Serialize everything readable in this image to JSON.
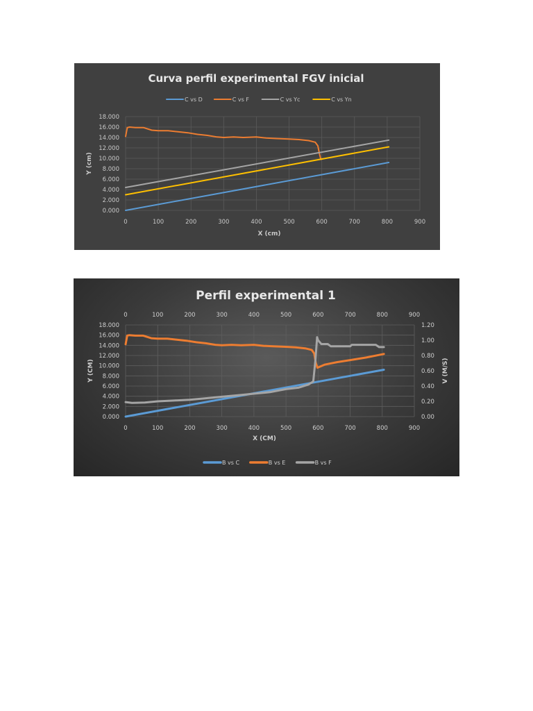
{
  "chart_data": [
    {
      "type": "line",
      "title": "Curva perfil experimental FGV inicial",
      "xlabel": "X (cm)",
      "ylabel": "Y (cm)",
      "xlim": [
        0,
        900
      ],
      "ylim": [
        0,
        18
      ],
      "x_ticks": [
        "0",
        "100",
        "200",
        "300",
        "400",
        "500",
        "600",
        "700",
        "800",
        "900"
      ],
      "y_ticks": [
        "0.000",
        "2.000",
        "4.000",
        "6.000",
        "8.000",
        "10.000",
        "12.000",
        "14.000",
        "16.000",
        "18.000"
      ],
      "grid": true,
      "legend_position": "top",
      "series": [
        {
          "name": "C vs D",
          "color": "#5b9bd5",
          "x": [
            0,
            805
          ],
          "y": [
            0.0,
            9.2
          ]
        },
        {
          "name": "C vs F",
          "color": "#ed7d31",
          "x": [
            0,
            5,
            12,
            30,
            55,
            80,
            100,
            130,
            160,
            190,
            220,
            250,
            280,
            300,
            330,
            360,
            400,
            430,
            460,
            500,
            530,
            560,
            580,
            588,
            593,
            597,
            602
          ],
          "y": [
            14.2,
            15.9,
            16.0,
            15.9,
            15.9,
            15.4,
            15.3,
            15.3,
            15.1,
            14.9,
            14.6,
            14.4,
            14.1,
            14.0,
            14.1,
            14.0,
            14.1,
            13.9,
            13.8,
            13.7,
            13.6,
            13.4,
            13.1,
            12.4,
            10.8,
            9.8,
            9.9
          ]
        },
        {
          "name": "C vs Yc",
          "color": "#a5a5a5",
          "x": [
            0,
            805
          ],
          "y": [
            4.4,
            13.5
          ]
        },
        {
          "name": "C vs Yn",
          "color": "#ffc000",
          "x": [
            0,
            805
          ],
          "y": [
            3.0,
            12.2
          ]
        }
      ]
    },
    {
      "type": "line",
      "title": "Perfil experimental 1",
      "xlabel": "X (CM)",
      "ylabel": "Y (CM)",
      "y2label": "V (M/S)",
      "xlim": [
        0,
        900
      ],
      "ylim": [
        0,
        18
      ],
      "y2lim": [
        0,
        1.2
      ],
      "x_ticks": [
        "0",
        "100",
        "200",
        "300",
        "400",
        "500",
        "600",
        "700",
        "800",
        "900"
      ],
      "y_ticks": [
        "0.000",
        "2.000",
        "4.000",
        "6.000",
        "8.000",
        "10.000",
        "12.000",
        "14.000",
        "16.000",
        "18.000"
      ],
      "y2_ticks": [
        "0.00",
        "0.20",
        "0.40",
        "0.60",
        "0.80",
        "1.00",
        "1.20"
      ],
      "grid": true,
      "legend_position": "bottom",
      "series": [
        {
          "name": "B vs C",
          "color": "#5b9bd5",
          "axis": "left",
          "x": [
            0,
            805
          ],
          "y": [
            0.0,
            9.2
          ]
        },
        {
          "name": "B vs E",
          "color": "#ed7d31",
          "axis": "left",
          "x": [
            0,
            5,
            12,
            30,
            55,
            80,
            100,
            130,
            160,
            190,
            220,
            250,
            280,
            300,
            330,
            360,
            400,
            430,
            460,
            500,
            530,
            560,
            580,
            588,
            593,
            598,
            620,
            660,
            700,
            750,
            805
          ],
          "y": [
            14.2,
            15.9,
            16.0,
            15.9,
            15.9,
            15.4,
            15.3,
            15.3,
            15.1,
            14.9,
            14.6,
            14.4,
            14.1,
            14.0,
            14.1,
            14.0,
            14.1,
            13.9,
            13.8,
            13.7,
            13.6,
            13.4,
            13.1,
            12.4,
            10.5,
            9.6,
            10.2,
            10.7,
            11.1,
            11.6,
            12.3
          ]
        },
        {
          "name": "B vs F",
          "color": "#a5a5a5",
          "axis": "right",
          "x": [
            0,
            20,
            60,
            100,
            150,
            200,
            250,
            300,
            350,
            400,
            450,
            500,
            540,
            570,
            585,
            592,
            597,
            600,
            610,
            630,
            640,
            660,
            700,
            705,
            720,
            780,
            790,
            805
          ],
          "y": [
            0.19,
            0.18,
            0.185,
            0.2,
            0.21,
            0.22,
            0.24,
            0.26,
            0.28,
            0.3,
            0.32,
            0.36,
            0.38,
            0.42,
            0.46,
            0.75,
            1.04,
            1.0,
            0.95,
            0.95,
            0.92,
            0.92,
            0.92,
            0.94,
            0.94,
            0.94,
            0.91,
            0.91
          ]
        }
      ]
    }
  ]
}
